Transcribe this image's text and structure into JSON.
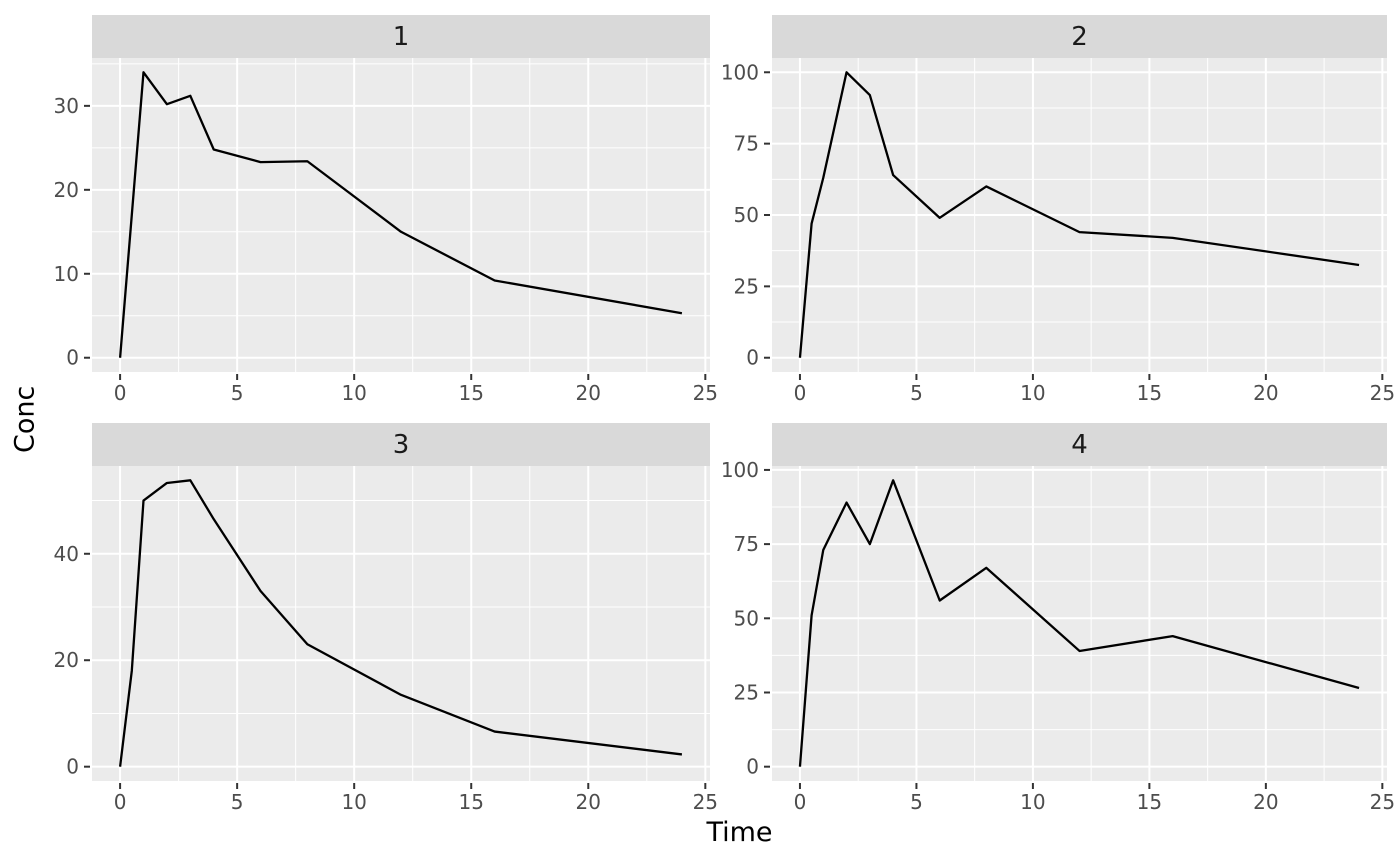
{
  "figure": {
    "xlabel": "Time",
    "ylabel": "Conc",
    "background": "#FFFFFF",
    "colors": {
      "panel_bg": "#EBEBEB",
      "strip_bg": "#D9D9D9",
      "strip_text": "#1A1A1A",
      "grid": "#FFFFFF",
      "line": "#000000",
      "axis_text": "#4D4D4D",
      "tick_mark": "#333333",
      "title_text": "#000000"
    }
  },
  "chart_data": [
    {
      "type": "line",
      "facet": "1",
      "x": [
        0,
        0.5,
        1,
        2,
        3,
        4,
        6,
        8,
        12,
        16,
        24
      ],
      "y": [
        0,
        17,
        34,
        30.2,
        31.2,
        24.8,
        23.3,
        23.4,
        15,
        9.2,
        5.3
      ],
      "x_ticks": [
        0,
        5,
        10,
        15,
        20,
        25
      ],
      "y_ticks": [
        0,
        10,
        20,
        30
      ],
      "x_range_data": [
        0,
        24
      ],
      "grid": "on",
      "legend": "none"
    },
    {
      "type": "line",
      "facet": "2",
      "x": [
        0,
        0.5,
        1,
        2,
        3,
        4,
        6,
        8,
        12,
        16,
        24
      ],
      "y": [
        0,
        47,
        63,
        100,
        92,
        64,
        49,
        60,
        44,
        42,
        32.5
      ],
      "x_ticks": [
        0,
        5,
        10,
        15,
        20,
        25
      ],
      "y_ticks": [
        0,
        25,
        50,
        75,
        100
      ],
      "x_range_data": [
        0,
        24
      ],
      "grid": "on",
      "legend": "none"
    },
    {
      "type": "line",
      "facet": "3",
      "x": [
        0,
        0.5,
        1,
        2,
        3,
        4,
        6,
        8,
        12,
        16,
        24
      ],
      "y": [
        0,
        18,
        50,
        53.3,
        53.8,
        46.5,
        33,
        23,
        13.5,
        6.6,
        2.3
      ],
      "x_ticks": [
        0,
        5,
        10,
        15,
        20,
        25
      ],
      "y_ticks": [
        0,
        20,
        40
      ],
      "x_range_data": [
        0,
        24
      ],
      "grid": "on",
      "legend": "none"
    },
    {
      "type": "line",
      "facet": "4",
      "x": [
        0,
        0.5,
        1,
        2,
        3,
        4,
        6,
        8,
        12,
        16,
        24
      ],
      "y": [
        0,
        51,
        73,
        89,
        75,
        96.5,
        56,
        67,
        39,
        44,
        26.5
      ],
      "x_ticks": [
        0,
        5,
        10,
        15,
        20,
        25
      ],
      "y_ticks": [
        0,
        25,
        50,
        75,
        100
      ],
      "x_range_data": [
        0,
        24
      ],
      "grid": "on",
      "legend": "none"
    }
  ]
}
